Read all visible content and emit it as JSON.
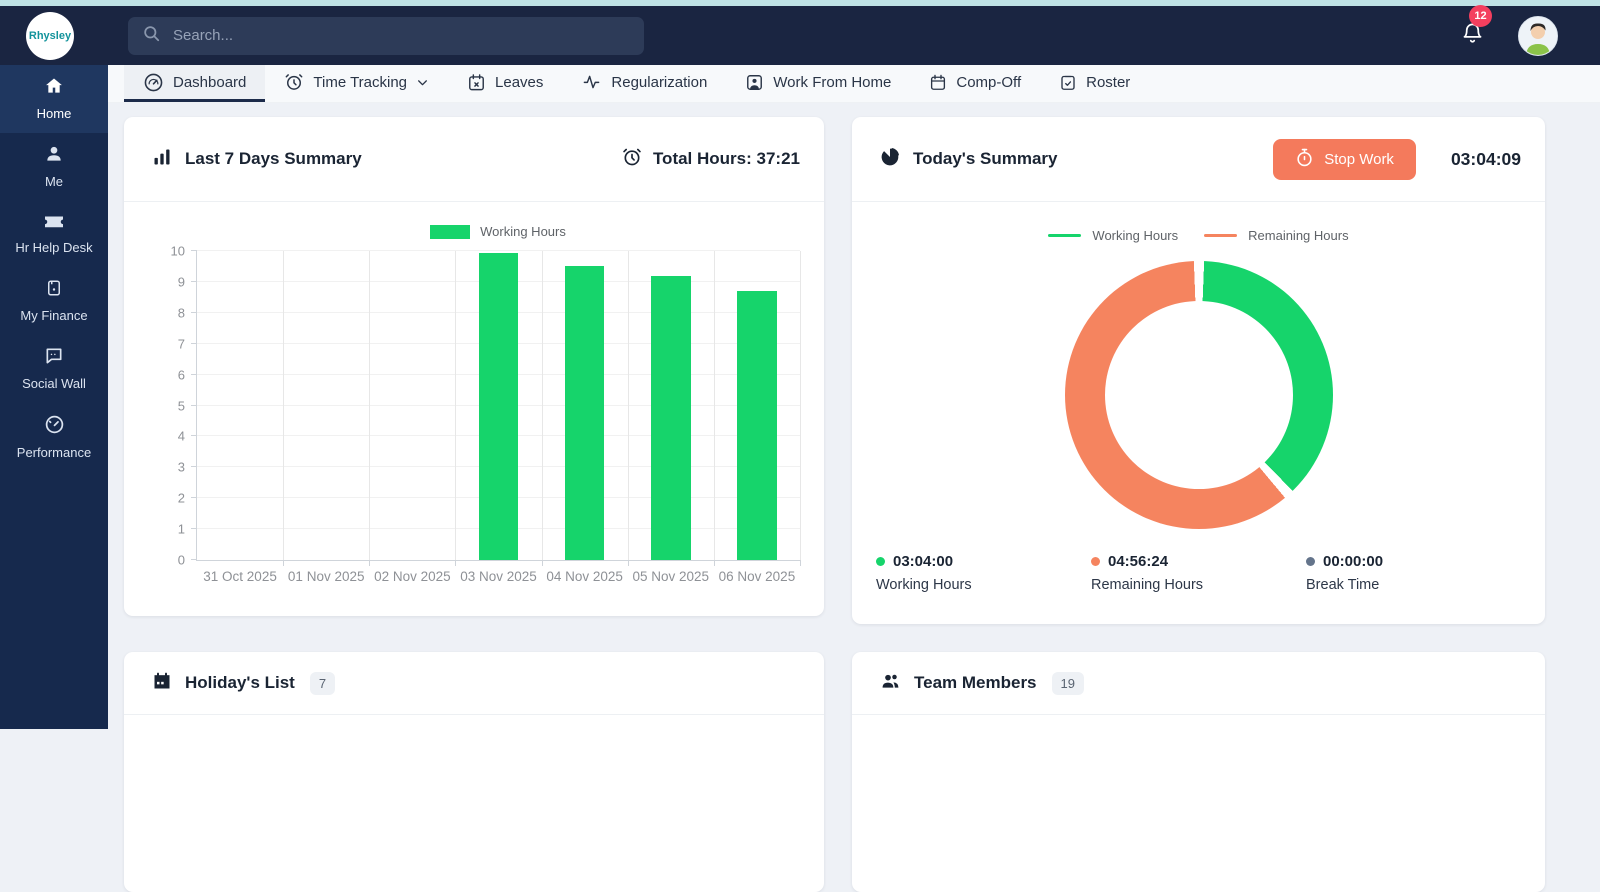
{
  "topbar": {
    "logo_text": "Rhysley",
    "search_placeholder": "Search...",
    "notification_count": "12"
  },
  "sidebar": {
    "items": [
      {
        "label": "Home",
        "icon": "home-icon",
        "active": true
      },
      {
        "label": "Me",
        "icon": "user-icon",
        "active": false
      },
      {
        "label": "Hr Help Desk",
        "icon": "ticket-icon",
        "active": false
      },
      {
        "label": "My Finance",
        "icon": "finance-icon",
        "active": false
      },
      {
        "label": "Social Wall",
        "icon": "chat-bubble-icon",
        "active": false
      },
      {
        "label": "Performance",
        "icon": "gauge-icon",
        "active": false
      }
    ]
  },
  "tabs": [
    {
      "label": "Dashboard",
      "icon": "gauge-circle-icon",
      "active": true,
      "dropdown": false
    },
    {
      "label": "Time Tracking",
      "icon": "alarm-clock-icon",
      "active": false,
      "dropdown": true
    },
    {
      "label": "Leaves",
      "icon": "calendar-x-icon",
      "active": false,
      "dropdown": false
    },
    {
      "label": "Regularization",
      "icon": "activity-icon",
      "active": false,
      "dropdown": false
    },
    {
      "label": "Work From Home",
      "icon": "user-square-icon",
      "active": false,
      "dropdown": false
    },
    {
      "label": "Comp-Off",
      "icon": "calendar-icon",
      "active": false,
      "dropdown": false
    },
    {
      "label": "Roster",
      "icon": "clipboard-check-icon",
      "active": false,
      "dropdown": false
    }
  ],
  "cards": {
    "last7": {
      "title": "Last 7 Days Summary",
      "total_hours_label": "Total Hours: 37:21"
    },
    "today": {
      "title": "Today's Summary",
      "stop_work_label": "Stop Work",
      "timer": "03:04:09",
      "stats": [
        {
          "value": "03:04:00",
          "label": "Working Hours",
          "color": "#16d46b"
        },
        {
          "value": "04:56:24",
          "label": "Remaining Hours",
          "color": "#f5845f"
        },
        {
          "value": "00:00:00",
          "label": "Break Time",
          "color": "#64748b"
        }
      ]
    },
    "holidays": {
      "title": "Holiday's List",
      "badge": "7"
    },
    "team": {
      "title": "Team Members",
      "badge": "19"
    }
  },
  "chart_data": [
    {
      "type": "bar",
      "title": "Last 7 Days Summary",
      "categories": [
        "31 Oct 2025",
        "01 Nov 2025",
        "02 Nov 2025",
        "03 Nov 2025",
        "04 Nov 2025",
        "05 Nov 2025",
        "06 Nov 2025"
      ],
      "series": [
        {
          "name": "Working Hours",
          "values": [
            0,
            0,
            0,
            9.95,
            9.5,
            9.2,
            8.7
          ],
          "color": "#16d46b"
        }
      ],
      "ylabel": "",
      "xlabel": "",
      "ylim": [
        0,
        10
      ],
      "ytick_step": 1,
      "grid": true,
      "legend_position": "top"
    },
    {
      "type": "pie",
      "subtype": "donut",
      "title": "Today's Summary",
      "slices": [
        {
          "label": "Working Hours",
          "value_hms": "03:04:00",
          "seconds": 11040,
          "color": "#16d46b"
        },
        {
          "label": "Remaining Hours",
          "value_hms": "04:56:24",
          "seconds": 17784,
          "color": "#f5845f"
        },
        {
          "label": "Break Time",
          "value_hms": "00:00:00",
          "seconds": 0,
          "color": "#64748b"
        }
      ],
      "legend_position": "top",
      "legend_entries": [
        "Working Hours",
        "Remaining Hours"
      ]
    }
  ]
}
